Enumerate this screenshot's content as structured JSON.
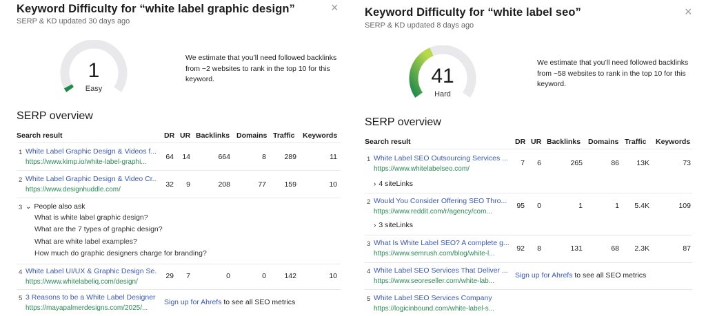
{
  "left": {
    "title": "Keyword Difficulty for “white label graphic design”",
    "subtitle": "SERP & KD updated 30 days ago",
    "close": "×",
    "kd": {
      "value": "1",
      "label": "Easy",
      "fraction": 0.01,
      "color": "#1f8a4c"
    },
    "estimate": "We estimate that you’ll need followed backlinks from ~2 websites to rank in the top 10 for this keyword.",
    "serp_title": "SERP overview",
    "headers": [
      "Search result",
      "DR",
      "UR",
      "Backlinks",
      "Domains",
      "Traffic",
      "Keywords"
    ],
    "rows": [
      {
        "idx": "1",
        "title": "White Label Graphic Design & Videos f...",
        "url": "https://www.kimp.io/white-label-graphi...",
        "dr": "64",
        "ur": "14",
        "backlinks": "664",
        "domains": "8",
        "traffic": "289",
        "keywords": "11"
      },
      {
        "idx": "2",
        "title": "White Label Graphic Design & Video Cr...",
        "url": "https://www.designhuddle.com/",
        "dr": "32",
        "ur": "9",
        "backlinks": "208",
        "domains": "77",
        "traffic": "159",
        "keywords": "10"
      },
      {
        "idx": "4",
        "title": "White Label UI/UX & Graphic Design Se...",
        "url": "https://www.whitelabeliq.com/design/",
        "dr": "29",
        "ur": "7",
        "backlinks": "0",
        "domains": "0",
        "traffic": "142",
        "keywords": "10"
      },
      {
        "idx": "5",
        "title": "3 Reasons to be a White Label Designer",
        "url": "https://mayapalmerdesigns.com/2025/..."
      }
    ],
    "paa": {
      "idx": "3",
      "label": "People also ask",
      "questions": [
        "What is white label graphic design?",
        "What are the 7 types of graphic design?",
        "What are white label examples?",
        "How much do graphic designers charge for branding?"
      ]
    },
    "signup_link": "Sign up for Ahrefs",
    "signup_rest": " to see all SEO metrics"
  },
  "right": {
    "title": "Keyword Difficulty for “white label seo”",
    "subtitle": "SERP & KD updated 8 days ago",
    "close": "×",
    "kd": {
      "value": "41",
      "label": "Hard",
      "fraction": 0.41,
      "color": "#86c232"
    },
    "estimate": "We estimate that you’ll need followed backlinks from ~58 websites to rank in the top 10 for this keyword.",
    "serp_title": "SERP overview",
    "headers": [
      "Search result",
      "DR",
      "UR",
      "Backlinks",
      "Domains",
      "Traffic",
      "Keywords"
    ],
    "rows": [
      {
        "idx": "1",
        "title": "White Label SEO Outsourcing Services ...",
        "url": "https://www.whitelabelseo.com/",
        "dr": "7",
        "ur": "6",
        "backlinks": "265",
        "domains": "86",
        "traffic": "13K",
        "keywords": "73",
        "sitelinks": "4 siteLinks"
      },
      {
        "idx": "2",
        "title": "Would You Consider Offering SEO Thro...",
        "url": "https://www.reddit.com/r/agency/com...",
        "dr": "95",
        "ur": "0",
        "backlinks": "1",
        "domains": "1",
        "traffic": "5.4K",
        "keywords": "109",
        "sitelinks": "3 siteLinks"
      },
      {
        "idx": "3",
        "title": "What Is White Label SEO? A complete g...",
        "url": "https://www.semrush.com/blog/white-l...",
        "dr": "92",
        "ur": "8",
        "backlinks": "131",
        "domains": "68",
        "traffic": "2.3K",
        "keywords": "87"
      },
      {
        "idx": "4",
        "title": "White Label SEO Services That Deliver ...",
        "url": "https://www.seoreseller.com/white-lab..."
      },
      {
        "idx": "5",
        "title": "White Label SEO Services Company",
        "url": "https://logicinbound.com/white-label-s..."
      }
    ],
    "signup_link": "Sign up for Ahrefs",
    "signup_rest": " to see all SEO metrics"
  }
}
